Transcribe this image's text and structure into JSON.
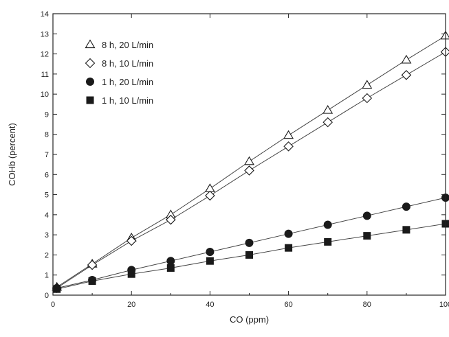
{
  "chart_data": {
    "type": "line",
    "title": "",
    "xlabel": "CO (ppm)",
    "ylabel": "COHb (percent)",
    "xlim": [
      0,
      100
    ],
    "ylim": [
      0,
      14
    ],
    "xticks": [
      0,
      20,
      40,
      60,
      80,
      100
    ],
    "yticks": [
      0,
      1,
      2,
      3,
      4,
      5,
      6,
      7,
      8,
      9,
      10,
      11,
      12,
      13,
      14
    ],
    "x": [
      1,
      10,
      20,
      30,
      40,
      50,
      60,
      70,
      80,
      90,
      100
    ],
    "grid": false,
    "legend_position": "top-left",
    "series": [
      {
        "name": "8 h, 20 L/min",
        "marker": "open-triangle",
        "values": [
          0.4,
          1.55,
          2.85,
          4.0,
          5.3,
          6.65,
          7.95,
          9.2,
          10.45,
          11.7,
          12.9
        ]
      },
      {
        "name": "8 h, 10 L/min",
        "marker": "open-diamond",
        "values": [
          0.35,
          1.5,
          2.7,
          3.75,
          4.95,
          6.2,
          7.4,
          8.6,
          9.8,
          10.95,
          12.1
        ]
      },
      {
        "name": "1 h, 20 L/min",
        "marker": "filled-circle",
        "values": [
          0.35,
          0.75,
          1.25,
          1.7,
          2.15,
          2.6,
          3.05,
          3.5,
          3.95,
          4.4,
          4.85
        ]
      },
      {
        "name": "1 h, 10 L/min",
        "marker": "filled-square",
        "values": [
          0.3,
          0.7,
          1.05,
          1.35,
          1.7,
          2.0,
          2.35,
          2.65,
          2.95,
          3.25,
          3.55
        ]
      }
    ],
    "colors": {
      "line": "#444444",
      "marker": "#1a1a1a",
      "axis": "#222222"
    }
  }
}
